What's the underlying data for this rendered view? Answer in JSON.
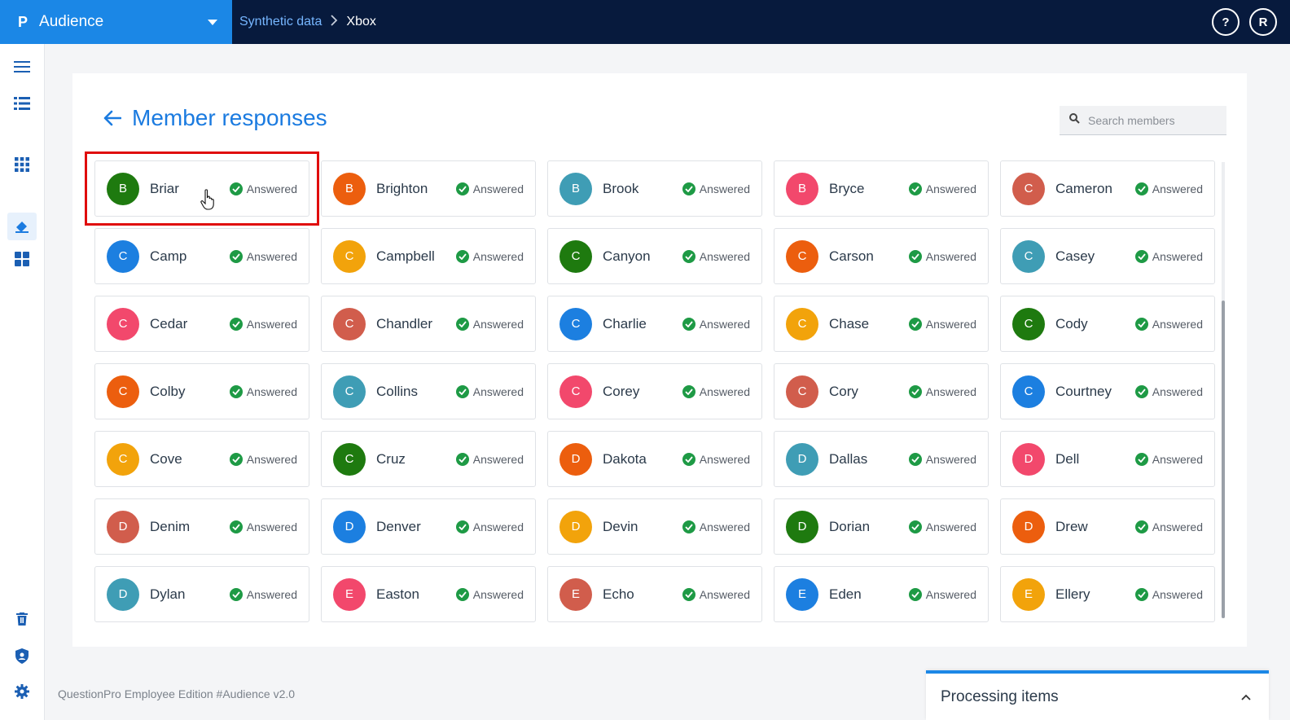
{
  "app": {
    "logo": "P",
    "name": "Audience"
  },
  "breadcrumb": {
    "parent": "Synthetic data",
    "separator": ">",
    "current": "Xbox"
  },
  "topbar": {
    "help_label": "?",
    "user_initial": "R"
  },
  "page": {
    "title": "Member responses"
  },
  "search": {
    "placeholder": "Search members"
  },
  "colors": {
    "accent": "#1b87e6",
    "topbar": "#071a3d",
    "answered": "#1e9a45",
    "highlight": "#e00d0d"
  },
  "members": [
    {
      "initial": "B",
      "name": "Briar",
      "status": "Answered",
      "color": "#1e7a0f"
    },
    {
      "initial": "B",
      "name": "Brighton",
      "status": "Answered",
      "color": "#ec5e0e"
    },
    {
      "initial": "B",
      "name": "Brook",
      "status": "Answered",
      "color": "#3f9db5"
    },
    {
      "initial": "B",
      "name": "Bryce",
      "status": "Answered",
      "color": "#f2486c"
    },
    {
      "initial": "C",
      "name": "Cameron",
      "status": "Answered",
      "color": "#d15d4c"
    },
    {
      "initial": "C",
      "name": "Camp",
      "status": "Answered",
      "color": "#1c7fe0"
    },
    {
      "initial": "C",
      "name": "Campbell",
      "status": "Answered",
      "color": "#f2a30b"
    },
    {
      "initial": "C",
      "name": "Canyon",
      "status": "Answered",
      "color": "#1e7a0f"
    },
    {
      "initial": "C",
      "name": "Carson",
      "status": "Answered",
      "color": "#ec5e0e"
    },
    {
      "initial": "C",
      "name": "Casey",
      "status": "Answered",
      "color": "#3f9db5"
    },
    {
      "initial": "C",
      "name": "Cedar",
      "status": "Answered",
      "color": "#f2486c"
    },
    {
      "initial": "C",
      "name": "Chandler",
      "status": "Answered",
      "color": "#d15d4c"
    },
    {
      "initial": "C",
      "name": "Charlie",
      "status": "Answered",
      "color": "#1c7fe0"
    },
    {
      "initial": "C",
      "name": "Chase",
      "status": "Answered",
      "color": "#f2a30b"
    },
    {
      "initial": "C",
      "name": "Cody",
      "status": "Answered",
      "color": "#1e7a0f"
    },
    {
      "initial": "C",
      "name": "Colby",
      "status": "Answered",
      "color": "#ec5e0e"
    },
    {
      "initial": "C",
      "name": "Collins",
      "status": "Answered",
      "color": "#3f9db5"
    },
    {
      "initial": "C",
      "name": "Corey",
      "status": "Answered",
      "color": "#f2486c"
    },
    {
      "initial": "C",
      "name": "Cory",
      "status": "Answered",
      "color": "#d15d4c"
    },
    {
      "initial": "C",
      "name": "Courtney",
      "status": "Answered",
      "color": "#1c7fe0"
    },
    {
      "initial": "C",
      "name": "Cove",
      "status": "Answered",
      "color": "#f2a30b"
    },
    {
      "initial": "C",
      "name": "Cruz",
      "status": "Answered",
      "color": "#1e7a0f"
    },
    {
      "initial": "D",
      "name": "Dakota",
      "status": "Answered",
      "color": "#ec5e0e"
    },
    {
      "initial": "D",
      "name": "Dallas",
      "status": "Answered",
      "color": "#3f9db5"
    },
    {
      "initial": "D",
      "name": "Dell",
      "status": "Answered",
      "color": "#f2486c"
    },
    {
      "initial": "D",
      "name": "Denim",
      "status": "Answered",
      "color": "#d15d4c"
    },
    {
      "initial": "D",
      "name": "Denver",
      "status": "Answered",
      "color": "#1c7fe0"
    },
    {
      "initial": "D",
      "name": "Devin",
      "status": "Answered",
      "color": "#f2a30b"
    },
    {
      "initial": "D",
      "name": "Dorian",
      "status": "Answered",
      "color": "#1e7a0f"
    },
    {
      "initial": "D",
      "name": "Drew",
      "status": "Answered",
      "color": "#ec5e0e"
    },
    {
      "initial": "D",
      "name": "Dylan",
      "status": "Answered",
      "color": "#3f9db5"
    },
    {
      "initial": "E",
      "name": "Easton",
      "status": "Answered",
      "color": "#f2486c"
    },
    {
      "initial": "E",
      "name": "Echo",
      "status": "Answered",
      "color": "#d15d4c"
    },
    {
      "initial": "E",
      "name": "Eden",
      "status": "Answered",
      "color": "#1c7fe0"
    },
    {
      "initial": "E",
      "name": "Ellery",
      "status": "Answered",
      "color": "#f2a30b"
    }
  ],
  "footer": {
    "text": "QuestionPro Employee Edition  #Audience v2.0"
  },
  "processing": {
    "label": "Processing items"
  }
}
